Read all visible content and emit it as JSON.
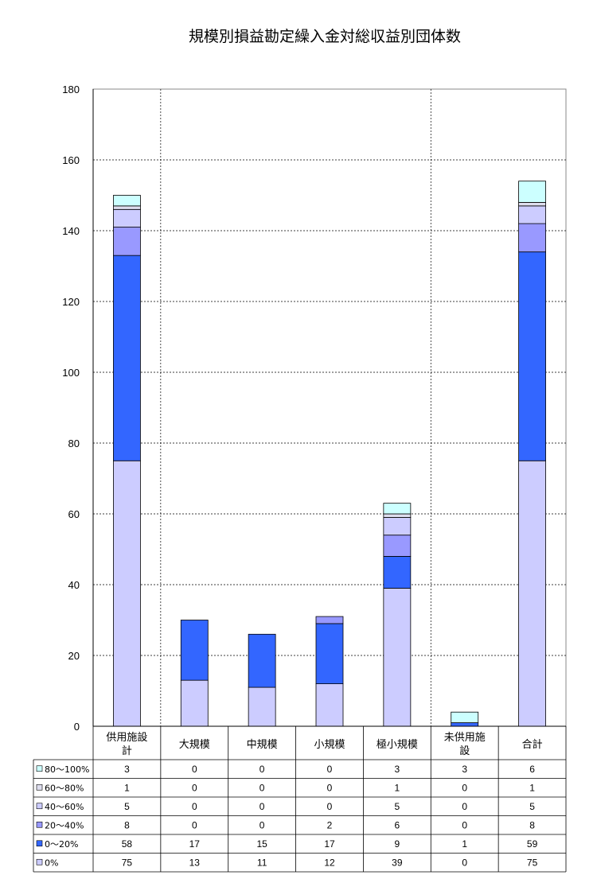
{
  "chart_data": {
    "type": "bar",
    "stacked": true,
    "title": "規模別損益勘定繰入金対総収益別団体数",
    "categories": [
      [
        "供用施設",
        "計"
      ],
      [
        "大規模"
      ],
      [
        "中規模"
      ],
      [
        "小規模"
      ],
      [
        "極小規模"
      ],
      [
        "未供用施",
        "設"
      ],
      [
        "合計"
      ]
    ],
    "ylim": [
      0,
      180
    ],
    "yticks": [
      0,
      20,
      40,
      60,
      80,
      100,
      120,
      140,
      160,
      180
    ],
    "grid": true,
    "legend_position": "data-table-left",
    "series": [
      {
        "name": "0%",
        "color": "#ccccff",
        "values": [
          75,
          13,
          11,
          12,
          39,
          0,
          75
        ]
      },
      {
        "name": "0～20%",
        "color": "#3366ff",
        "values": [
          58,
          17,
          15,
          17,
          9,
          1,
          59
        ]
      },
      {
        "name": "20～40%",
        "color": "#9999ff",
        "values": [
          8,
          0,
          0,
          2,
          6,
          0,
          8
        ]
      },
      {
        "name": "40～60%",
        "color": "#ccccff",
        "values": [
          5,
          0,
          0,
          0,
          5,
          0,
          5
        ]
      },
      {
        "name": "60～80%",
        "color": "#ddddee",
        "values": [
          1,
          0,
          0,
          0,
          1,
          0,
          1
        ]
      },
      {
        "name": "80～100%",
        "color": "#ccffff",
        "values": [
          3,
          0,
          0,
          0,
          3,
          3,
          6
        ]
      }
    ],
    "table_row_order": [
      "80～100%",
      "60～80%",
      "40～60%",
      "20～40%",
      "0～20%",
      "0%"
    ]
  }
}
